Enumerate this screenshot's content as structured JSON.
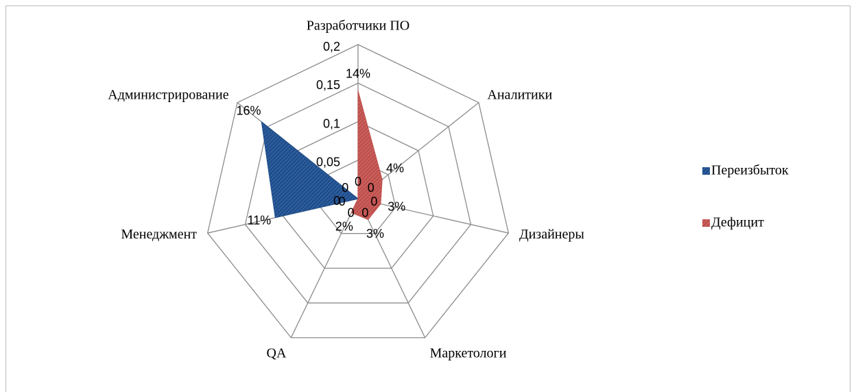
{
  "chart_data": {
    "type": "radar",
    "categories": [
      "Разработчики ПО",
      "Аналитики",
      "Дизайнеры",
      "Маркетологи",
      "QA",
      "Менеджмент",
      "Администрирование"
    ],
    "series": [
      {
        "name": "Переизбыток",
        "color": "#1f4e8c",
        "values": [
          0,
          0,
          0,
          0,
          0,
          0.11,
          0.16
        ],
        "value_labels": [
          "0",
          "0",
          "0",
          "0",
          "0",
          "11%",
          "16%"
        ]
      },
      {
        "name": "Дефицит",
        "color": "#c0504d",
        "values": [
          0.14,
          0.04,
          0.03,
          0.03,
          0.02,
          0,
          0
        ],
        "value_labels": [
          "14%",
          "4%",
          "3%",
          "3%",
          "2%",
          "0",
          "0"
        ]
      }
    ],
    "ylim": [
      0,
      0.2
    ],
    "yticks": [
      0,
      {
        "value": 0.05,
        "label": "0,05"
      },
      {
        "value": 0.1,
        "label": "0,1"
      },
      {
        "value": 0.15,
        "label": "0,15"
      },
      {
        "value": 0.2,
        "label": "0,2"
      }
    ],
    "grid": true,
    "legend": "right"
  }
}
